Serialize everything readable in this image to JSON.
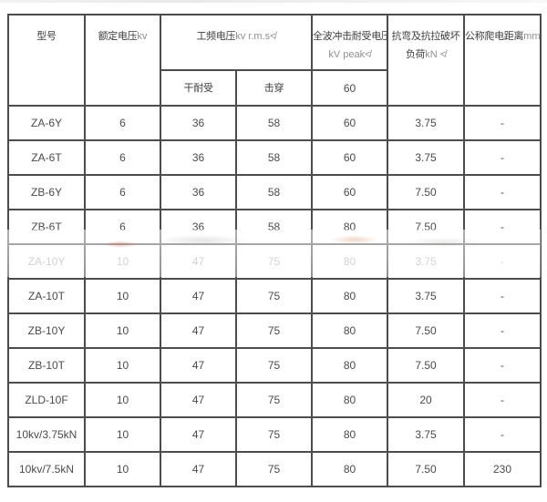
{
  "colors": {
    "border": "#4c4c4c",
    "header_text": "#3d3d3d",
    "latin_text": "#8f8f8f",
    "cell_text": "#4a4a4a",
    "faded_text": "#aeaeae",
    "background": "#ffffff"
  },
  "table": {
    "header": {
      "model": "型号",
      "rated": {
        "zh": "额定电压",
        "en": "kv"
      },
      "power_freq": {
        "zh": "工频电压",
        "en": "kv r.m.s≮"
      },
      "dry": "干耐受",
      "puncture": "击穿",
      "impulse": {
        "zh": "全波冲击耐受电压",
        "en": "kV peak≮"
      },
      "impulse_sub": "60",
      "load": {
        "zh": "抗弯及抗拉破坏负荷",
        "en": "kN ≮"
      },
      "creepage": {
        "zh": "公称爬电距离",
        "en": "mm"
      }
    },
    "rows": [
      {
        "model": "ZA-6Y",
        "rated": "6",
        "dry": "36",
        "puncture": "58",
        "impulse": "60",
        "load": "3.75",
        "creepage": "-"
      },
      {
        "model": "ZA-6T",
        "rated": "6",
        "dry": "36",
        "puncture": "58",
        "impulse": "60",
        "load": "3.75",
        "creepage": "-"
      },
      {
        "model": "ZB-6Y",
        "rated": "6",
        "dry": "36",
        "puncture": "58",
        "impulse": "60",
        "load": "7.50",
        "creepage": "-"
      },
      {
        "model": "ZB-6T",
        "rated": "6",
        "dry": "36",
        "puncture": "58",
        "impulse": "80",
        "load": "7.50",
        "creepage": "-"
      },
      {
        "model": "ZA-10Y",
        "rated": "10",
        "dry": "47",
        "puncture": "75",
        "impulse": "80",
        "load": "3.75",
        "creepage": "-",
        "faded": true
      },
      {
        "model": "ZA-10T",
        "rated": "10",
        "dry": "47",
        "puncture": "75",
        "impulse": "80",
        "load": "3.75",
        "creepage": "-"
      },
      {
        "model": "ZB-10Y",
        "rated": "10",
        "dry": "47",
        "puncture": "75",
        "impulse": "80",
        "load": "7.50",
        "creepage": "-"
      },
      {
        "model": "ZB-10T",
        "rated": "10",
        "dry": "47",
        "puncture": "75",
        "impulse": "80",
        "load": "7.50",
        "creepage": "-"
      },
      {
        "model": "ZLD-10F",
        "rated": "10",
        "dry": "47",
        "puncture": "75",
        "impulse": "80",
        "load": "20",
        "creepage": "-"
      },
      {
        "model": "10kv/3.75kN",
        "rated": "10",
        "dry": "47",
        "puncture": "75",
        "impulse": "80",
        "load": "3.75",
        "creepage": "-"
      },
      {
        "model": "10kv/7.5kN",
        "rated": "10",
        "dry": "47",
        "puncture": "75",
        "impulse": "80",
        "load": "7.50",
        "creepage": "230"
      }
    ]
  }
}
